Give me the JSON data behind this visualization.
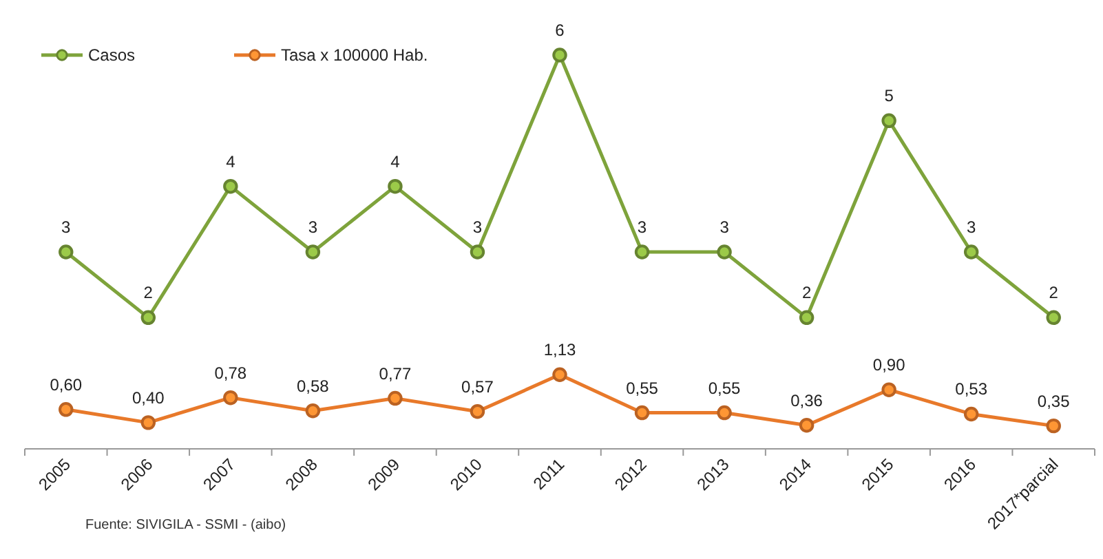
{
  "chart_data": {
    "type": "line",
    "categories": [
      "2005",
      "2006",
      "2007",
      "2008",
      "2009",
      "2010",
      "2011",
      "2012",
      "2013",
      "2014",
      "2015",
      "2016",
      "2017*parcial"
    ],
    "series": [
      {
        "name": "Casos",
        "color": "#7ea33b",
        "values": [
          3,
          2,
          4,
          3,
          4,
          3,
          6,
          3,
          3,
          2,
          5,
          3,
          2
        ],
        "value_labels": [
          "3",
          "2",
          "4",
          "3",
          "4",
          "3",
          "6",
          "3",
          "3",
          "2",
          "5",
          "3",
          "2"
        ]
      },
      {
        "name": "Tasa x 100000 Hab.",
        "color": "#e8792a",
        "values": [
          0.6,
          0.4,
          0.78,
          0.58,
          0.77,
          0.57,
          1.13,
          0.55,
          0.55,
          0.36,
          0.9,
          0.53,
          0.35
        ],
        "value_labels": [
          "0,60",
          "0,40",
          "0,78",
          "0,58",
          "0,77",
          "0,57",
          "1,13",
          "0,55",
          "0,55",
          "0,36",
          "0,90",
          "0,53",
          "0,35"
        ]
      }
    ],
    "tick_labels": "x",
    "marker": "circle",
    "legend": "top left",
    "annotations": [
      "Fuente: SIVIGILA - SSMI - (aibo)"
    ]
  }
}
